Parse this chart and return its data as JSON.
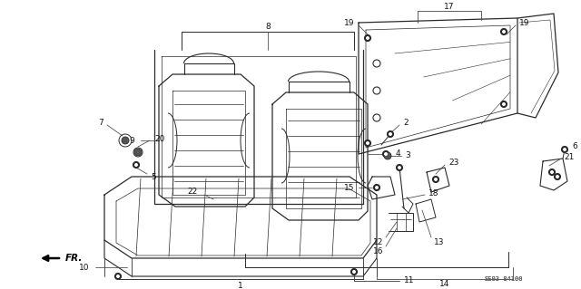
{
  "background_color": "#ffffff",
  "line_color": "#2a2a2a",
  "text_color": "#111111",
  "part_code": "SE03-84100",
  "figsize": [
    6.4,
    3.19
  ],
  "dpi": 100
}
